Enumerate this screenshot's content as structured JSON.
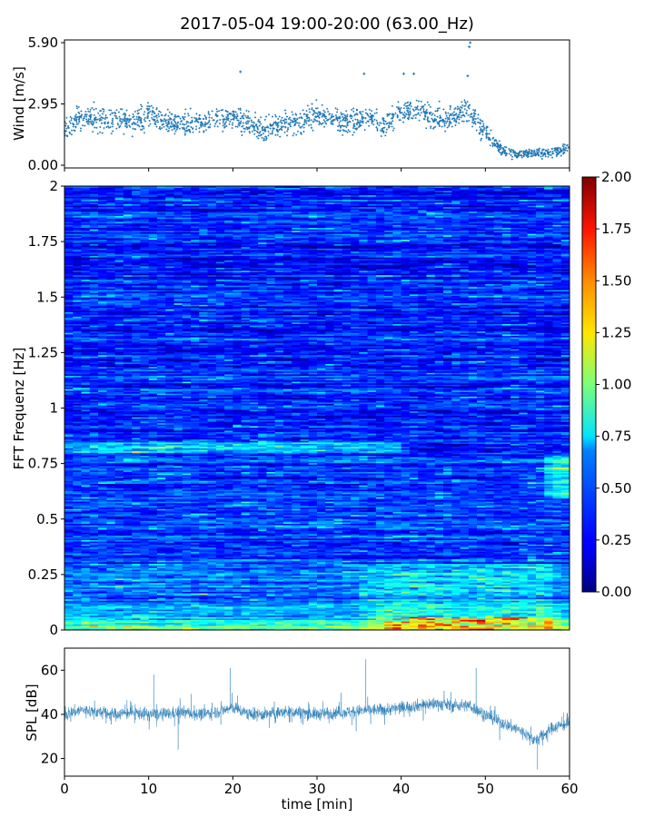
{
  "chart_data": {
    "title": "2017-05-04 19:00-20:00 (63.00_Hz)",
    "xlabel": "time [min]",
    "x_ticks": [
      "0",
      "10",
      "20",
      "30",
      "40",
      "50",
      "60"
    ],
    "xlim": [
      0,
      60
    ],
    "panels": [
      {
        "type": "scatter",
        "name": "wind",
        "ylabel": "Wind [m/s]",
        "ylim": [
          0,
          5.9
        ],
        "y_ticks": [
          "0.00",
          "2.95",
          "5.90"
        ],
        "color": "#1f77b4",
        "trend": {
          "x": [
            0,
            2,
            4,
            6,
            8,
            10,
            12,
            14,
            16,
            18,
            20,
            22,
            24,
            26,
            28,
            30,
            32,
            34,
            36,
            38,
            40,
            42,
            44,
            46,
            48,
            50,
            52,
            54,
            56,
            58,
            60
          ],
          "y": [
            1.8,
            2.3,
            2.2,
            2.2,
            2.1,
            2.4,
            2.1,
            2.0,
            2.1,
            2.2,
            2.3,
            2.0,
            1.6,
            2.0,
            2.1,
            2.4,
            2.2,
            2.1,
            2.3,
            1.9,
            2.6,
            2.7,
            2.2,
            2.3,
            2.6,
            1.6,
            0.7,
            0.5,
            0.6,
            0.6,
            0.8
          ]
        },
        "spread": 0.55,
        "outliers": [
          {
            "x": 48.2,
            "y": 5.9
          },
          {
            "x": 48.1,
            "y": 5.7
          },
          {
            "x": 20.9,
            "y": 4.5
          },
          {
            "x": 35.6,
            "y": 4.4
          },
          {
            "x": 41.5,
            "y": 4.4
          },
          {
            "x": 40.3,
            "y": 4.4
          },
          {
            "x": 47.9,
            "y": 4.3
          }
        ]
      },
      {
        "type": "heatmap",
        "name": "spectrogram",
        "ylabel": "FFT Frequenz [Hz]",
        "ylim": [
          0,
          2
        ],
        "y_ticks": [
          "0",
          "0.25",
          "0.5",
          "0.75",
          "1",
          "1.25",
          "1.5",
          "1.75",
          "2"
        ],
        "colormap": "jet",
        "clim": [
          0,
          2
        ],
        "colorbar_ticks": [
          "0.00",
          "0.25",
          "0.50",
          "0.75",
          "1.00",
          "1.25",
          "1.50",
          "1.75",
          "2.00"
        ],
        "features": "low values (0.1-0.5) dominate above 0.3 Hz; elevated 0.5-1.2 below 0.25 Hz; hot spots up to 2.0 near 0-0.05 Hz around 40-58 min; band at ~0.82 Hz between 0-40 min"
      },
      {
        "type": "line",
        "name": "spl",
        "ylabel": "SPL [dB]",
        "ylim": [
          12,
          70
        ],
        "y_ticks": [
          "20",
          "40",
          "60"
        ],
        "color": "#1f77b4",
        "trend": {
          "x": [
            0,
            2,
            4,
            6,
            8,
            10,
            12,
            14,
            16,
            18,
            20,
            22,
            24,
            26,
            28,
            30,
            32,
            34,
            36,
            38,
            40,
            42,
            44,
            46,
            48,
            50,
            52,
            54,
            56,
            58,
            60
          ],
          "y": [
            40,
            42,
            41,
            40,
            41,
            40,
            40,
            41,
            40,
            41,
            43,
            40,
            40,
            41,
            41,
            40,
            41,
            41,
            42,
            42,
            43,
            44,
            45,
            44,
            44,
            40,
            36,
            33,
            28,
            34,
            36
          ]
        },
        "spread": 5,
        "spikes": [
          {
            "x": 35.8,
            "y": 65
          },
          {
            "x": 19.7,
            "y": 61
          },
          {
            "x": 48.9,
            "y": 61
          },
          {
            "x": 10.6,
            "y": 58
          },
          {
            "x": 13.5,
            "y": 24
          },
          {
            "x": 56.2,
            "y": 15
          }
        ]
      }
    ]
  }
}
